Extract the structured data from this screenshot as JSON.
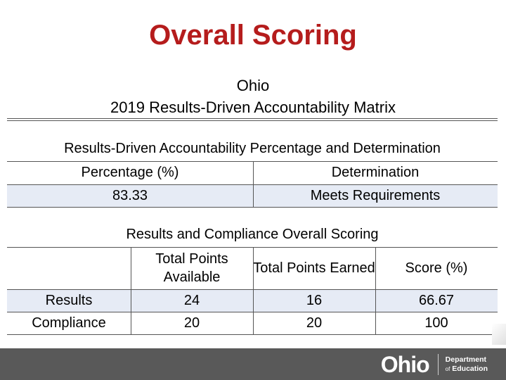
{
  "title": "Overall Scoring",
  "subtitle": {
    "line1": "Ohio",
    "line2": "2019 Results-Driven Accountability Matrix"
  },
  "rda_table": {
    "heading": "Results-Driven Accountability Percentage and Determination",
    "headers": [
      "Percentage (%)",
      "Determination"
    ],
    "row": [
      "83.33",
      "Meets Requirements"
    ]
  },
  "scoring_table": {
    "heading": "Results and Compliance Overall Scoring",
    "headers": [
      "Total Points Available",
      "Total Points Earned",
      "Score (%)"
    ],
    "rows": [
      {
        "label": "Results",
        "available": "24",
        "earned": "16",
        "score": "66.67"
      },
      {
        "label": "Compliance",
        "available": "20",
        "earned": "20",
        "score": "100"
      }
    ]
  },
  "footer": {
    "logo_text": "Ohio",
    "dept_line1": "Department",
    "dept_line2_prefix": "of",
    "dept_line2": "Education"
  },
  "colors": {
    "title": "#b51c1c",
    "shade": "#e6ebf5",
    "footer": "#595959"
  }
}
